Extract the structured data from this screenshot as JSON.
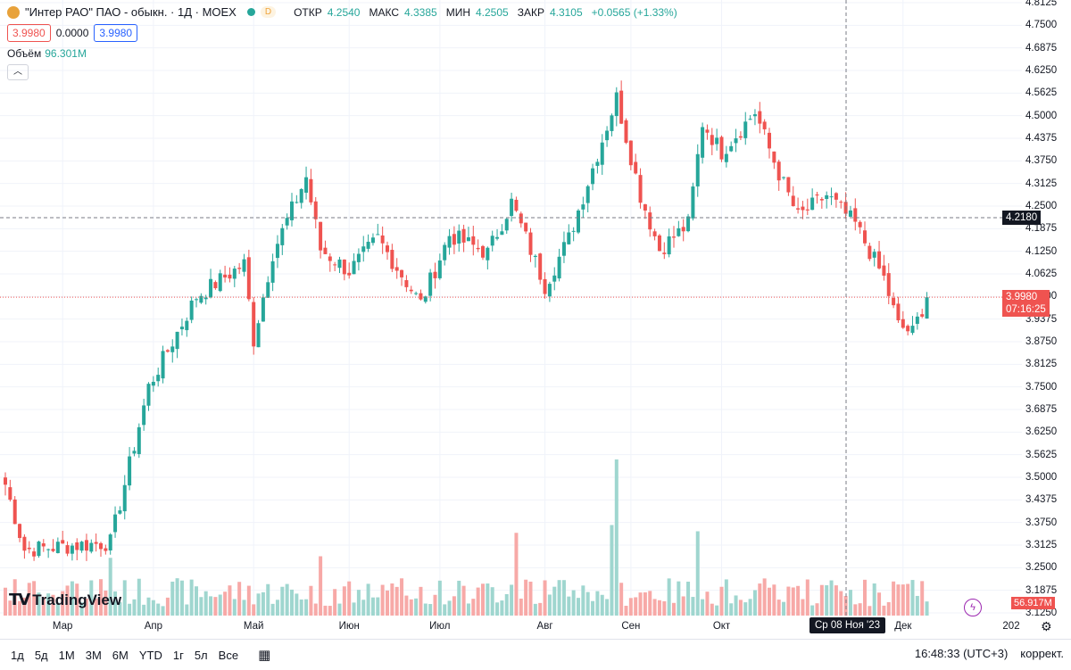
{
  "legend": {
    "title": "\"Интер РАО\" ПАО - обыкн. · 1Д · MOEX",
    "d_badge": "D",
    "open_label": "ОТКР",
    "open_value": "4.2540",
    "high_label": "МАКС",
    "high_value": "4.3385",
    "low_label": "МИН",
    "low_value": "4.2505",
    "close_label": "ЗАКР",
    "close_value": "4.3105",
    "change": "+0.0565 (+1.33%)",
    "sell_price": "3.9980",
    "spread": "0.0000",
    "buy_price": "3.9980",
    "volume_label": "Объём",
    "volume_value": "96.301M",
    "collapse_icon": "chevron-up-icon"
  },
  "price_axis": {
    "ticks": [
      "4.8125",
      "4.7500",
      "4.6875",
      "4.6250",
      "4.5625",
      "4.5000",
      "4.4375",
      "4.3750",
      "4.3125",
      "4.2500",
      "4.1875",
      "4.1250",
      "4.0625",
      "4.0000",
      "3.9375",
      "3.8750",
      "3.8125",
      "3.7500",
      "3.6875",
      "3.6250",
      "3.5625",
      "3.5000",
      "3.4375",
      "3.3750",
      "3.3125",
      "3.2500",
      "3.1875",
      "3.1250"
    ],
    "crosshair_price": "4.2180",
    "last_price": "3.9980",
    "countdown": "07:16:25",
    "volume_tag": "56.917M"
  },
  "time_axis": {
    "labels": [
      "Мар",
      "Апр",
      "Май",
      "Июн",
      "Июл",
      "Авг",
      "Сен",
      "Окт",
      "Дек",
      "202"
    ],
    "crosshair_date": "Ср 08 Ноя '23"
  },
  "branding": {
    "name": "TradingView"
  },
  "toolbar": {
    "ranges": [
      "1д",
      "5д",
      "1М",
      "3М",
      "6М",
      "YTD",
      "1г",
      "5л",
      "Все"
    ],
    "calendar_icon": "calendar-range-icon",
    "clock": "16:48:33 (UTC+3)",
    "adjust": "коррект."
  },
  "colors": {
    "up": "#26a69a",
    "down": "#ef5350",
    "vol_up": "#9fd6cf",
    "vol_down": "#f7a9a7",
    "grid": "#f0f3fa"
  },
  "chart_data": {
    "type": "candlestick",
    "ylim": [
      3.125,
      4.8125
    ],
    "x_labels": [
      "Мар",
      "Апр",
      "Май",
      "Июн",
      "Июл",
      "Авг",
      "Сен",
      "Окт",
      "Дек"
    ],
    "month_starts": [
      12,
      31,
      52,
      72,
      91,
      113,
      131,
      150,
      188
    ],
    "bars_anchors": [
      {
        "i": 0,
        "close": 3.48
      },
      {
        "i": 4,
        "close": 3.3
      },
      {
        "i": 22,
        "close": 3.32
      },
      {
        "i": 30,
        "close": 3.75
      },
      {
        "i": 40,
        "close": 4.0
      },
      {
        "i": 50,
        "close": 4.09
      },
      {
        "i": 52,
        "close": 3.88
      },
      {
        "i": 56,
        "close": 4.12
      },
      {
        "i": 63,
        "close": 4.33
      },
      {
        "i": 66,
        "close": 4.13
      },
      {
        "i": 72,
        "close": 4.07
      },
      {
        "i": 78,
        "close": 4.16
      },
      {
        "i": 87,
        "close": 3.98
      },
      {
        "i": 93,
        "close": 4.17
      },
      {
        "i": 101,
        "close": 4.12
      },
      {
        "i": 106,
        "close": 4.26
      },
      {
        "i": 113,
        "close": 4.03
      },
      {
        "i": 118,
        "close": 4.16
      },
      {
        "i": 128,
        "close": 4.55
      },
      {
        "i": 133,
        "close": 4.28
      },
      {
        "i": 137,
        "close": 4.13
      },
      {
        "i": 143,
        "close": 4.2
      },
      {
        "i": 146,
        "close": 4.48
      },
      {
        "i": 150,
        "close": 4.4
      },
      {
        "i": 157,
        "close": 4.51
      },
      {
        "i": 162,
        "close": 4.34
      },
      {
        "i": 166,
        "close": 4.22
      },
      {
        "i": 172,
        "close": 4.28
      },
      {
        "i": 178,
        "close": 4.2
      },
      {
        "i": 184,
        "close": 4.05
      },
      {
        "i": 187,
        "close": 3.92
      },
      {
        "i": 190,
        "close": 3.9
      },
      {
        "i": 193,
        "close": 4.0
      }
    ],
    "bar_count": 194,
    "last_close": 3.998,
    "crosshair_price": 4.218,
    "volume_peaks": [
      {
        "i": 128,
        "rel": 1.0
      },
      {
        "i": 127,
        "rel": 0.58
      },
      {
        "i": 107,
        "rel": 0.53
      },
      {
        "i": 145,
        "rel": 0.54
      },
      {
        "i": 22,
        "rel": 0.37
      },
      {
        "i": 66,
        "rel": 0.38
      }
    ]
  }
}
